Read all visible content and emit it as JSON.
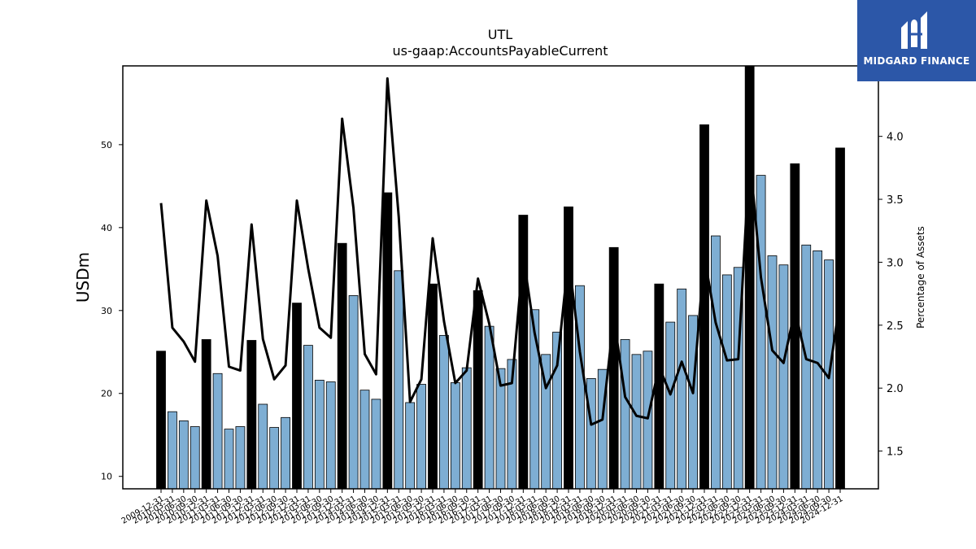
{
  "chart_data": {
    "type": "bar",
    "title": "UTL",
    "subtitle": "us-gaap:AccountsPayableCurrent",
    "ylabel": "USDm",
    "y2label": "Percentage of Assets",
    "ylim": [
      8.5,
      59.5
    ],
    "y2lim": [
      1.2,
      4.56
    ],
    "yticks": [
      10,
      20,
      30,
      40,
      50
    ],
    "y2ticks": [
      1.5,
      2.0,
      2.5,
      3.0,
      3.5,
      4.0
    ],
    "categories": [
      "2009-12-31",
      "2010-03-31",
      "2010-06-30",
      "2010-09-30",
      "2010-12-31",
      "2011-03-31",
      "2011-06-30",
      "2011-09-30",
      "2011-12-31",
      "2012-03-31",
      "2012-06-30",
      "2012-09-30",
      "2012-12-31",
      "2013-03-31",
      "2013-06-30",
      "2013-09-30",
      "2013-12-31",
      "2014-03-31",
      "2014-06-30",
      "2014-09-30",
      "2014-12-31",
      "2015-03-31",
      "2015-06-30",
      "2015-09-30",
      "2015-12-31",
      "2016-03-31",
      "2016-06-30",
      "2016-09-30",
      "2016-12-31",
      "2017-03-31",
      "2017-06-30",
      "2017-09-30",
      "2017-12-31",
      "2018-03-31",
      "2018-06-30",
      "2018-09-30",
      "2018-12-31",
      "2019-03-31",
      "2019-06-30",
      "2019-09-30",
      "2019-12-31",
      "2020-03-31",
      "2020-06-30",
      "2020-09-30",
      "2020-12-31",
      "2021-03-31",
      "2021-06-30",
      "2021-09-30",
      "2021-12-31",
      "2022-03-31",
      "2022-06-30",
      "2022-09-30",
      "2022-12-31",
      "2023-03-31",
      "2023-06-30",
      "2023-09-30",
      "2023-12-31",
      "2024-03-31",
      "2024-06-30",
      "2024-09-30",
      "2024-12-31"
    ],
    "series": [
      {
        "kind": "bar",
        "values": [
          25.1,
          17.8,
          16.7,
          16.0,
          26.5,
          22.4,
          15.7,
          16.0,
          26.4,
          18.7,
          15.9,
          17.1,
          30.9,
          25.8,
          21.6,
          21.4,
          38.1,
          31.8,
          20.4,
          19.3,
          44.2,
          34.8,
          18.9,
          21.1,
          33.2,
          27.0,
          21.3,
          23.1,
          32.4,
          28.1,
          23.0,
          24.1,
          41.5,
          30.1,
          24.7,
          27.4,
          42.5,
          33.0,
          21.8,
          22.9,
          37.6,
          26.5,
          24.7,
          25.1,
          33.2,
          28.6,
          32.6,
          29.4,
          52.4,
          39.0,
          34.3,
          35.2,
          59.5,
          46.3,
          36.6,
          35.5,
          47.7,
          37.9,
          37.2,
          36.1,
          49.6
        ],
        "annual_flags": [
          1,
          0,
          0,
          0,
          1,
          0,
          0,
          0,
          1,
          0,
          0,
          0,
          1,
          0,
          0,
          0,
          1,
          0,
          0,
          0,
          1,
          0,
          0,
          0,
          1,
          0,
          0,
          0,
          1,
          0,
          0,
          0,
          1,
          0,
          0,
          0,
          1,
          0,
          0,
          0,
          1,
          0,
          0,
          0,
          1,
          0,
          0,
          0,
          1,
          0,
          0,
          0,
          1,
          0,
          0,
          0,
          1,
          0,
          0,
          0,
          1
        ]
      },
      {
        "kind": "line",
        "axis": "right",
        "values": [
          3.47,
          2.48,
          2.37,
          2.21,
          3.49,
          3.05,
          2.17,
          2.14,
          3.3,
          2.39,
          2.07,
          2.18,
          3.49,
          2.95,
          2.48,
          2.4,
          4.14,
          3.43,
          2.27,
          2.11,
          4.46,
          3.36,
          1.89,
          2.07,
          3.19,
          2.53,
          2.04,
          2.14,
          2.87,
          2.51,
          2.02,
          2.04,
          3.05,
          2.44,
          2.0,
          2.18,
          3.04,
          2.29,
          1.71,
          1.75,
          2.56,
          1.93,
          1.78,
          1.76,
          2.17,
          1.95,
          2.21,
          1.96,
          3.05,
          2.52,
          2.22,
          2.23,
          3.85,
          2.88,
          2.3,
          2.2,
          2.62,
          2.23,
          2.2,
          2.08,
          2.71
        ]
      }
    ],
    "colors": {
      "annual_bar": "#000000",
      "quarter_bar": "#7eaed3",
      "bar_edge": "#000000",
      "line": "#000000"
    },
    "grid": false,
    "legend": "none"
  },
  "logo": {
    "text": "MIDGARD FINANCE",
    "background": "#2c57a8"
  }
}
